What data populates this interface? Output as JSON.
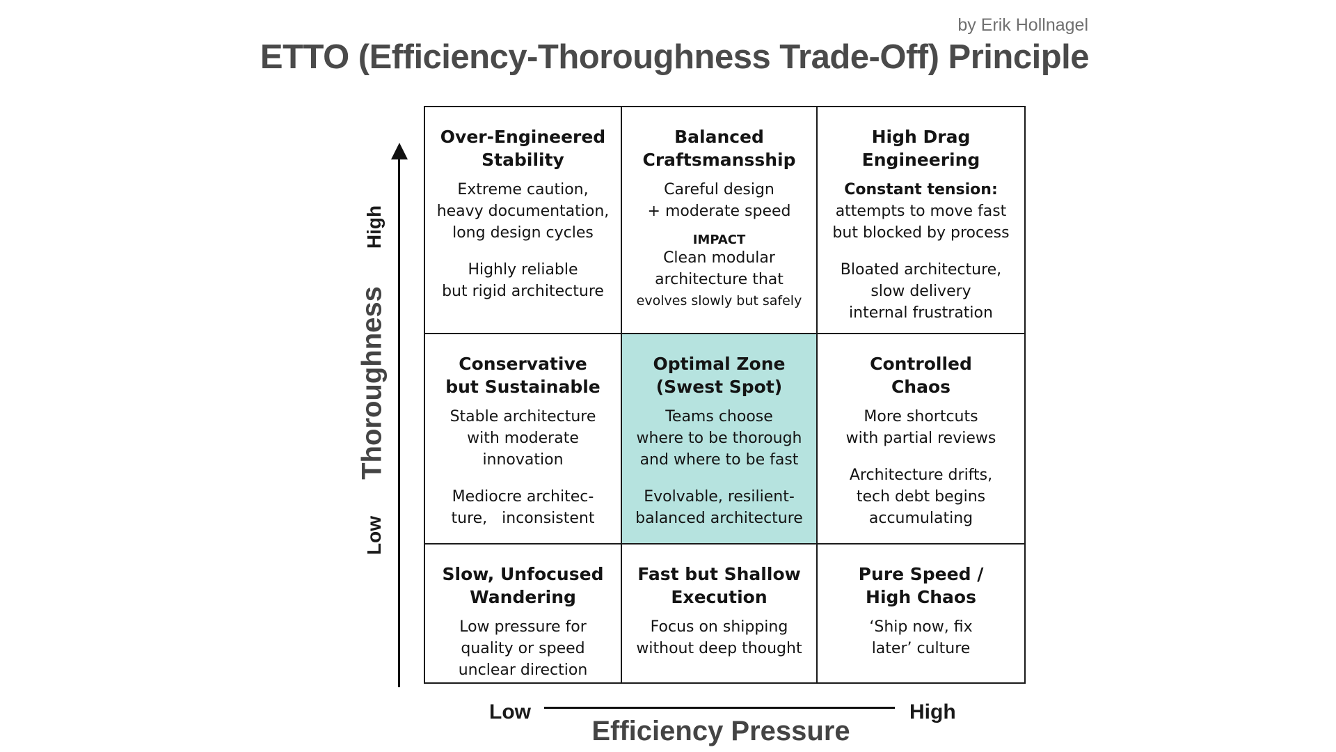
{
  "header": {
    "author": "by Erik Hollnagel",
    "title": "ETTO (Efficiency-Thoroughness Trade-Off) Principle"
  },
  "axes": {
    "y_title": "Thoroughness",
    "y_high": "High",
    "y_low": "Low",
    "x_title": "Efficiency Pressure",
    "x_low": "Low",
    "x_high": "High"
  },
  "cells": {
    "r1c1": {
      "title": [
        "Over-Engineered",
        "Stability"
      ],
      "desc": [
        "Extreme caution,",
        "heavy documentation,",
        "long design cycles"
      ],
      "outcome": [
        "Highly reliable",
        "but rigid architecture"
      ]
    },
    "r1c2": {
      "title": [
        "Balanced",
        "Craftsmansship"
      ],
      "desc": [
        "Careful design",
        "+ moderate speed"
      ],
      "impact_label": "IMPACT",
      "outcome": [
        "Clean modular",
        "architecture that",
        "evolves slowly but safely"
      ]
    },
    "r1c3": {
      "title": [
        "High Drag",
        "Engineering"
      ],
      "desc_lead": "Constant tension:",
      "desc": [
        "attempts to move fast",
        "but blocked by process"
      ],
      "outcome": [
        "Bloated architecture,",
        "slow delivery",
        "internal frustration"
      ]
    },
    "r2c1": {
      "title": [
        "Conservative",
        "but Sustainable"
      ],
      "desc": [
        "Stable architecture",
        "with moderate",
        "innovation"
      ],
      "outcome": [
        "Mediocre architec-",
        "ture,   inconsistent"
      ]
    },
    "r2c2": {
      "title": [
        "Optimal Zone",
        "(Swest Spot)"
      ],
      "desc": [
        "Teams choose",
        "where to be thorough",
        "and where to be fast"
      ],
      "outcome": [
        "Evolvable, resilient-",
        "balanced architecture"
      ]
    },
    "r2c3": {
      "title": [
        "Controlled",
        "Chaos"
      ],
      "desc": [
        "More shortcuts",
        "with partial reviews"
      ],
      "outcome": [
        "Architecture drifts,",
        "tech debt begins",
        "accumulating"
      ]
    },
    "r3c1": {
      "title": [
        "Slow, Unfocused",
        "Wandering"
      ],
      "desc": [
        "Low pressure for",
        "quality or speed",
        "unclear direction"
      ]
    },
    "r3c2": {
      "title": [
        "Fast but Shallow",
        "Execution"
      ],
      "desc": [
        "Focus on shipping",
        "without deep thought"
      ]
    },
    "r3c3": {
      "title": [
        "Pure Speed /",
        "High Chaos"
      ],
      "desc": [
        "‘Ship now, fix",
        "later’ culture"
      ]
    }
  },
  "colors": {
    "highlight": "#b6e3df",
    "grid_lines": "#1a1a1a",
    "title_text": "#4a4a4a",
    "author_text": "#6f6f6f"
  }
}
